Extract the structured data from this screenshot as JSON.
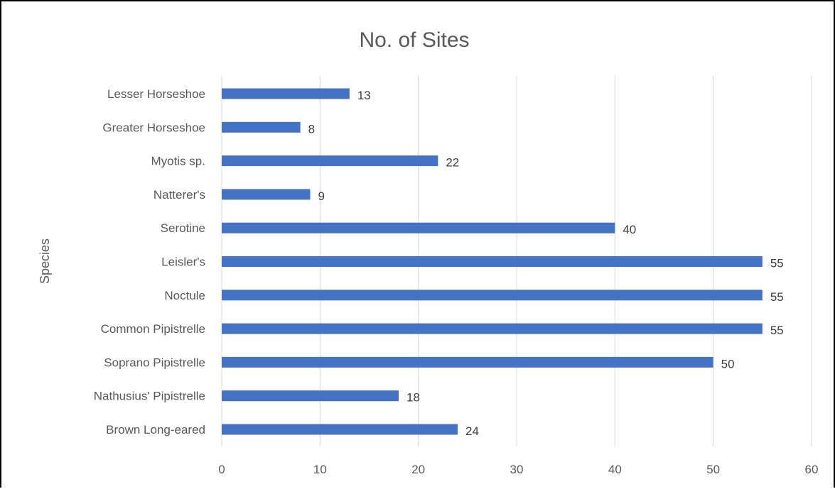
{
  "chart_data": {
    "type": "bar",
    "orientation": "horizontal",
    "title": "No. of Sites",
    "xlabel": "",
    "ylabel": "Species",
    "xlim": [
      0,
      60
    ],
    "xticks": [
      "0",
      "10",
      "20",
      "30",
      "40",
      "50",
      "60"
    ],
    "categories": [
      "Lesser Horseshoe",
      "Greater Horseshoe",
      "Myotis sp.",
      "Natterer's",
      "Serotine",
      "Leisler's",
      "Noctule",
      "Common Pipistrelle",
      "Soprano Pipistrelle",
      "Nathusius' Pipistrelle",
      "Brown Long-eared"
    ],
    "values": [
      13,
      8,
      22,
      9,
      40,
      55,
      55,
      55,
      50,
      18,
      24
    ],
    "grid": true,
    "vertical_gridlines": true,
    "data_labels": true,
    "bar_color": "#4472C4"
  }
}
